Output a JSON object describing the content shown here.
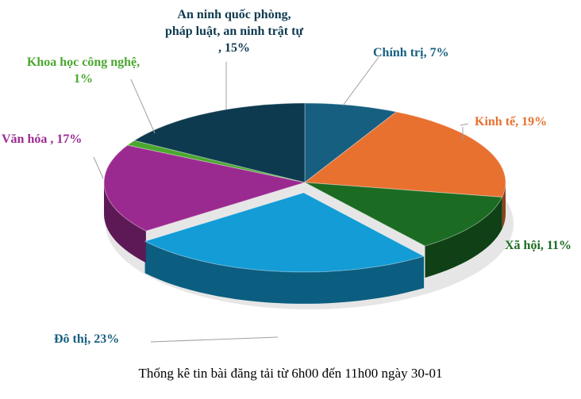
{
  "chart_data": {
    "type": "pie",
    "style": "3d",
    "title": "Thống kê tin bài đăng tải từ 6h00 đến 11h00 ngày 30-01",
    "legend": "none",
    "slices": [
      {
        "label": "Chính trị, 7%",
        "category": "Chính trị",
        "value": 7,
        "color": "#175f80"
      },
      {
        "label": "Kinh tế, 19%",
        "category": "Kinh tế",
        "value": 19,
        "color": "#e87130"
      },
      {
        "label": "Xã hội, 11%",
        "category": "Xã hội",
        "value": 11,
        "color": "#1b6b23"
      },
      {
        "label": "Đô thị, 23%",
        "category": "Đô thị",
        "value": 23,
        "color": "#139cd6"
      },
      {
        "label": "Văn hóa , 17%",
        "category": "Văn hóa",
        "value": 17,
        "color": "#9b2a90"
      },
      {
        "label": "Khoa học công nghệ, 1%",
        "category": "Khoa học công nghệ",
        "value": 1,
        "color": "#4aa82e"
      },
      {
        "label": "An ninh quốc phòng, pháp luật, an ninh trật tự , 15%",
        "category": "An ninh quốc phòng, pháp luật, an ninh trật tự",
        "value": 15,
        "color": "#0e3a4f"
      }
    ]
  }
}
